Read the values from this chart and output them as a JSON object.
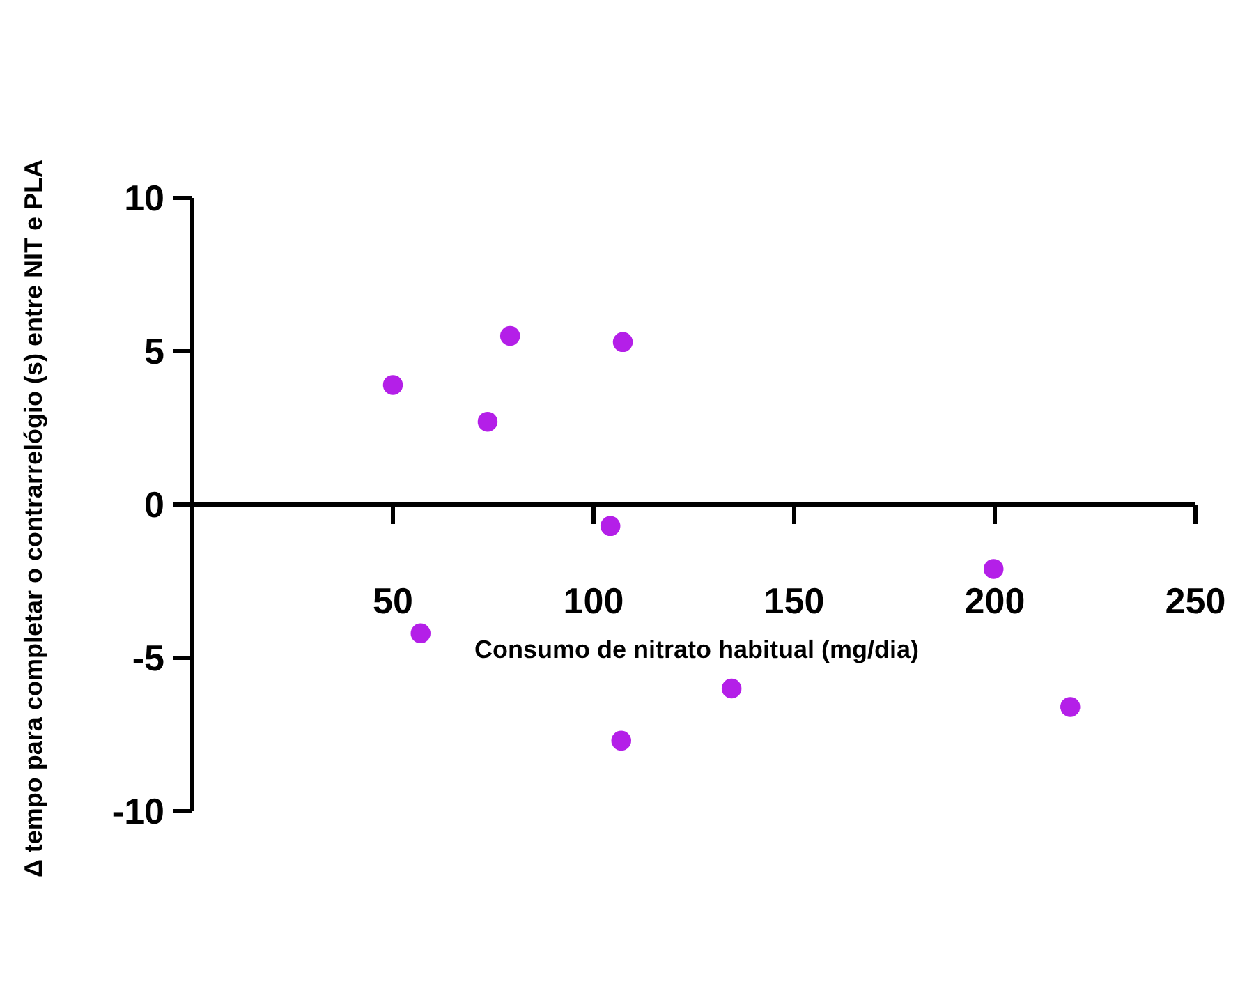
{
  "chart_data": {
    "type": "scatter",
    "xlabel": "Consumo de nitrato habitual (mg/dia)",
    "ylabel": "Δ tempo para completar o contrarrelógio (s) entre NIT e PLA",
    "x": [
      50,
      73.6,
      79.2,
      107.3,
      104.2,
      56.9,
      106.9,
      134.4,
      199.7,
      218.8
    ],
    "values": [
      3.9,
      2.7,
      5.5,
      5.3,
      -0.7,
      -4.2,
      -7.7,
      -6.0,
      -2.1,
      -6.6
    ],
    "color": "#b41fe8",
    "marker": "circle",
    "xlim": [
      0,
      250
    ],
    "xticks": [
      50,
      100,
      150,
      200,
      250
    ],
    "ylim": [
      -10,
      10
    ],
    "yticks": [
      -10,
      -5,
      0,
      5,
      10
    ],
    "grid": false
  }
}
